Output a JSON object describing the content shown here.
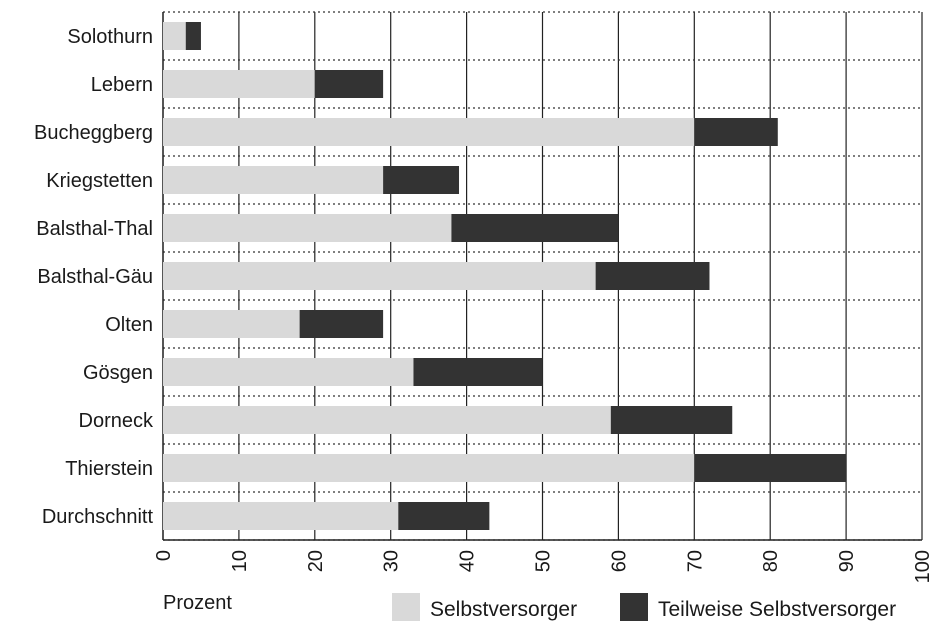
{
  "chart_data": {
    "type": "bar",
    "orientation": "horizontal",
    "stacked": true,
    "categories": [
      "Solothurn",
      "Lebern",
      "Bucheggberg",
      "Kriegstetten",
      "Balsthal-Thal",
      "Balsthal-Gäu",
      "Olten",
      "Gösgen",
      "Dorneck",
      "Thierstein",
      "Durchschnitt"
    ],
    "series": [
      {
        "name": "Selbstversorger",
        "color": "#d9d9d9",
        "values": [
          3,
          20,
          70,
          29,
          38,
          57,
          18,
          33,
          59,
          70,
          31
        ]
      },
      {
        "name": "Teilweise Selbstversorger",
        "color": "#333333",
        "values": [
          2,
          9,
          11,
          10,
          22,
          15,
          11,
          17,
          16,
          20,
          12
        ]
      }
    ],
    "xlabel": "Prozent",
    "xlim": [
      0,
      100
    ],
    "xticks": [
      0,
      10,
      20,
      30,
      40,
      50,
      60,
      70,
      80,
      90,
      100
    ],
    "grid": "dotted",
    "legend": "bottom-right"
  }
}
